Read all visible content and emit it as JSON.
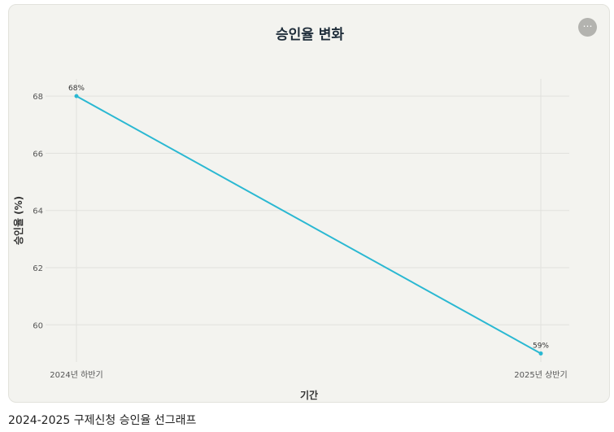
{
  "header": {
    "more_icon": "ellipsis-icon",
    "more_glyph": "⋯"
  },
  "caption": "2024-2025 구제신청 승인율 선그래프",
  "colors": {
    "line": "#2ab8d2",
    "grid": "#e1e1dd",
    "card_bg": "#f3f3ef",
    "title": "#1f2d3a"
  },
  "chart_data": {
    "type": "line",
    "title": "승인율 변화",
    "xlabel": "기간",
    "ylabel": "승인율 (%)",
    "categories": [
      "2024년 하반기",
      "2025년 상반기"
    ],
    "series": [
      {
        "values": [
          68,
          59
        ],
        "data_labels": [
          "68%",
          "59%"
        ]
      }
    ],
    "yticks": [
      60,
      62,
      64,
      66,
      68
    ],
    "ylim": [
      58.7,
      68.6
    ],
    "grid": true,
    "legend": "none"
  }
}
